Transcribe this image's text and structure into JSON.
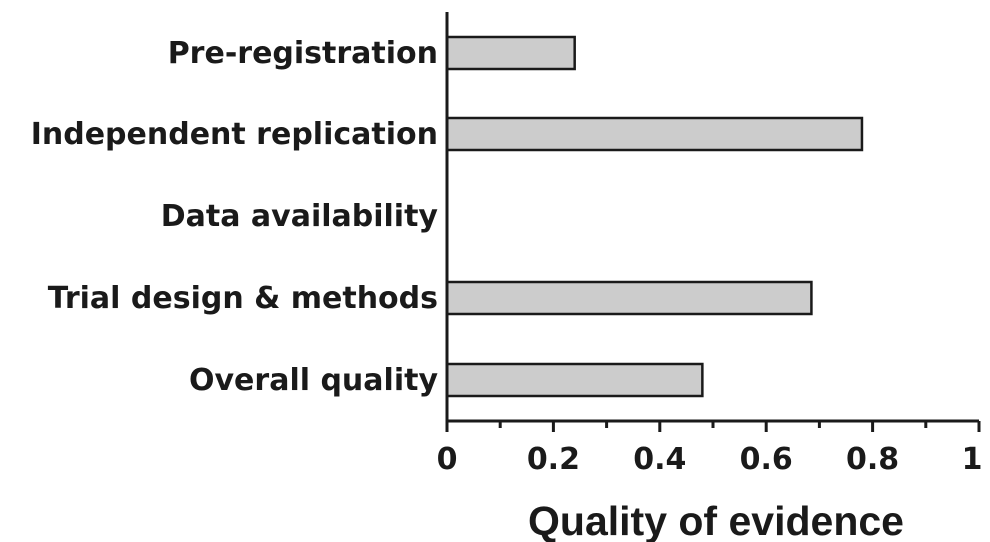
{
  "chart_data": {
    "type": "bar",
    "orientation": "horizontal",
    "categories": [
      "Pre-registration",
      "Independent replication",
      "Data availability",
      "Trial design & methods",
      "Overall quality"
    ],
    "values": [
      0.24,
      0.78,
      0.0,
      0.685,
      0.48
    ],
    "xlabel": "Quality of evidence",
    "ylabel": "",
    "xlim": [
      0,
      1
    ],
    "xticks": [
      0,
      0.2,
      0.4,
      0.6,
      0.8,
      1
    ],
    "xtick_labels": [
      "0",
      "0.2",
      "0.4",
      "0.6",
      "0.8",
      "1"
    ],
    "grid": false,
    "bar_color": "#cccccc",
    "edge_color": "#1a1a1a"
  }
}
